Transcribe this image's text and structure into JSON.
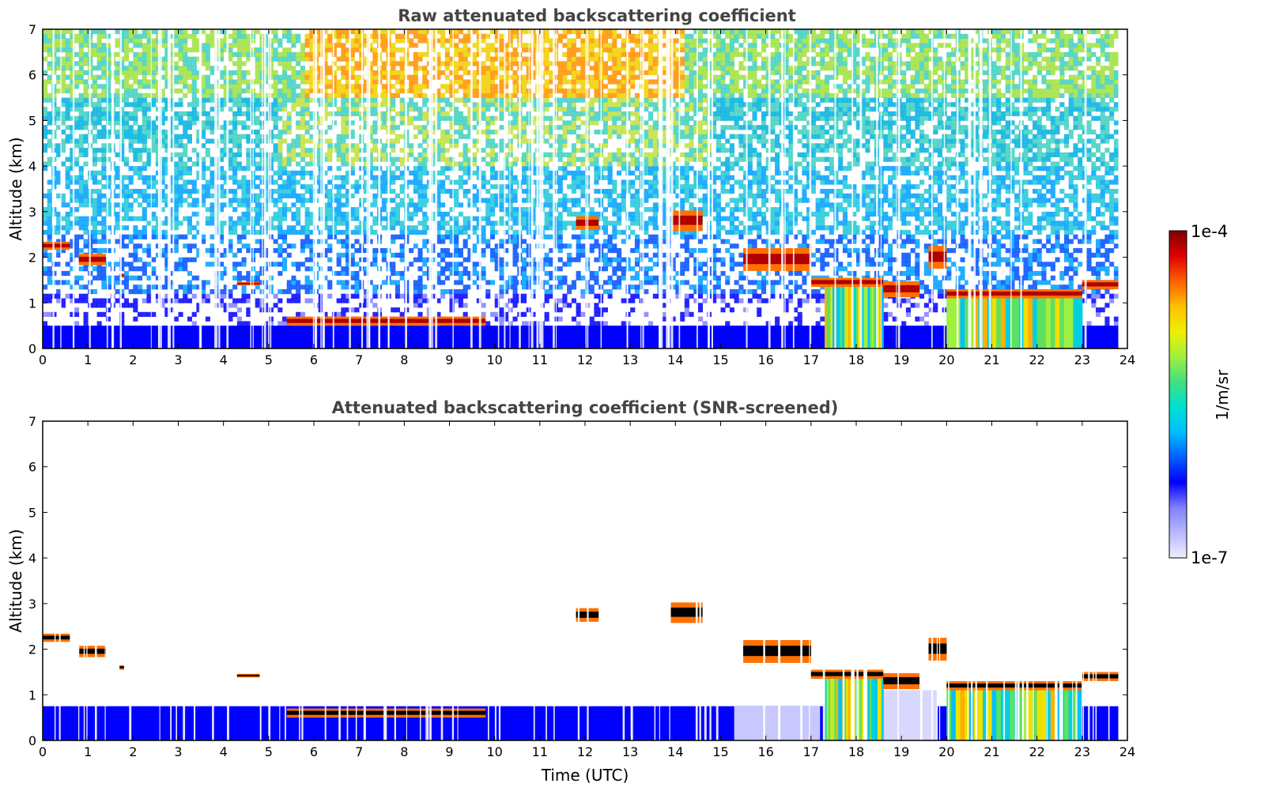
{
  "chart_data": [
    {
      "type": "heatmap",
      "title": "Raw attenuated backscattering coefficient",
      "xlabel": "",
      "ylabel": "Altitude (km)",
      "xlim": [
        0,
        24
      ],
      "ylim": [
        0,
        7
      ],
      "xticks": [
        "0",
        "1",
        "2",
        "3",
        "4",
        "5",
        "6",
        "7",
        "8",
        "9",
        "10",
        "11",
        "12",
        "13",
        "14",
        "15",
        "16",
        "17",
        "18",
        "19",
        "20",
        "21",
        "22",
        "23",
        "24"
      ],
      "yticks": [
        "0",
        "1",
        "2",
        "3",
        "4",
        "5",
        "6",
        "7"
      ],
      "screened": false,
      "grid": false
    },
    {
      "type": "heatmap",
      "title": "Attenuated backscattering coefficient (SNR-screened)",
      "xlabel": "Time (UTC)",
      "ylabel": "Altitude (km)",
      "xlim": [
        0,
        24
      ],
      "ylim": [
        0,
        7
      ],
      "xticks": [
        "0",
        "1",
        "2",
        "3",
        "4",
        "5",
        "6",
        "7",
        "8",
        "9",
        "10",
        "11",
        "12",
        "13",
        "14",
        "15",
        "16",
        "17",
        "18",
        "19",
        "20",
        "21",
        "22",
        "23",
        "24"
      ],
      "yticks": [
        "0",
        "1",
        "2",
        "3",
        "4",
        "5",
        "6",
        "7"
      ],
      "screened": true,
      "grid": false
    }
  ],
  "colorbar": {
    "label": "1/m/sr",
    "max_label": "1e-4",
    "min_label": "1e-7",
    "scale": "log",
    "range": [
      1e-07,
      0.0001
    ],
    "colormap": [
      "#eeeeff",
      "#b8b8ff",
      "#8080ff",
      "#0000ff",
      "#0060ff",
      "#00c0ff",
      "#00e0d0",
      "#40e080",
      "#a0f040",
      "#f0f000",
      "#ffc000",
      "#ff6000",
      "#e00000",
      "#800000"
    ]
  },
  "features": {
    "surface_layer_km": 0.5,
    "cloud_layers": [
      {
        "t": [
          0.0,
          0.6
        ],
        "alt_km": 2.25,
        "thick_km": 0.18
      },
      {
        "t": [
          0.8,
          1.4
        ],
        "alt_km": 1.95,
        "thick_km": 0.25
      },
      {
        "t": [
          1.7,
          1.8
        ],
        "alt_km": 1.6,
        "thick_km": 0.1
      },
      {
        "t": [
          4.3,
          4.8
        ],
        "alt_km": 1.42,
        "thick_km": 0.08
      },
      {
        "t": [
          5.4,
          9.8
        ],
        "alt_km": 0.6,
        "thick_km": 0.2
      },
      {
        "t": [
          11.8,
          12.3
        ],
        "alt_km": 2.75,
        "thick_km": 0.3
      },
      {
        "t": [
          13.9,
          14.6
        ],
        "alt_km": 2.8,
        "thick_km": 0.45
      },
      {
        "t": [
          15.5,
          17.0
        ],
        "alt_km": 1.95,
        "thick_km": 0.5
      },
      {
        "t": [
          17.0,
          18.6
        ],
        "alt_km": 1.45,
        "thick_km": 0.2
      },
      {
        "t": [
          18.6,
          19.4
        ],
        "alt_km": 1.3,
        "thick_km": 0.35
      },
      {
        "t": [
          19.6,
          20.0
        ],
        "alt_km": 2.0,
        "thick_km": 0.5
      },
      {
        "t": [
          20.0,
          23.0
        ],
        "alt_km": 1.2,
        "thick_km": 0.2
      },
      {
        "t": [
          23.0,
          23.8
        ],
        "alt_km": 1.4,
        "thick_km": 0.2
      }
    ],
    "fall_streaks": [
      {
        "t": [
          17.3,
          18.6
        ],
        "top_km": 1.4
      },
      {
        "t": [
          20.0,
          23.0
        ],
        "top_km": 1.1
      }
    ]
  }
}
